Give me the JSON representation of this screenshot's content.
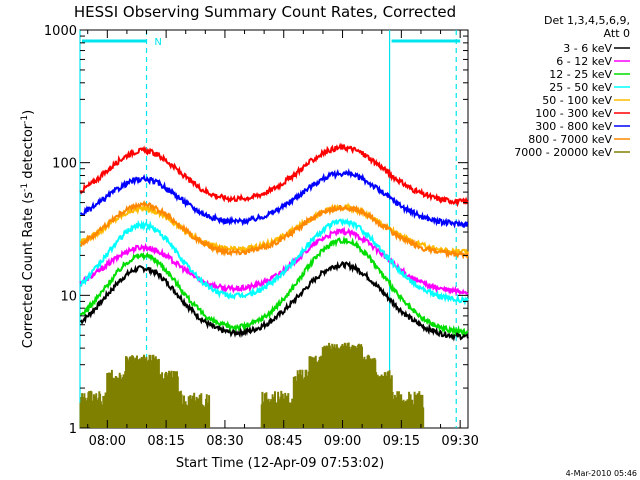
{
  "chart_data": {
    "type": "line",
    "title": "HESSI Observing Summary Count Rates, Corrected",
    "xlabel": "Start Time (12-Apr-09 07:53:02)",
    "ylabel": "Corrected Count Rate (s",
    "ylabel_sup1": "-1",
    "ylabel_mid": " detector",
    "ylabel_sup2": "-1",
    "ylabel_end": ")",
    "footer": "4-Mar-2010 05:46",
    "y_scale": "log",
    "ylim": [
      1,
      1000
    ],
    "y_ticks": [
      {
        "value": 1,
        "label": "1"
      },
      {
        "value": 10,
        "label": "10"
      },
      {
        "value": 100,
        "label": "100"
      },
      {
        "value": 1000,
        "label": "1000"
      }
    ],
    "xlim": [
      "07:53:02",
      "09:32:00"
    ],
    "x_ticks": [
      {
        "time": "08:00",
        "label": "08:00"
      },
      {
        "time": "08:15",
        "label": "08:15"
      },
      {
        "time": "08:30",
        "label": "08:30"
      },
      {
        "time": "08:45",
        "label": "08:45"
      },
      {
        "time": "09:00",
        "label": "09:00"
      },
      {
        "time": "09:15",
        "label": "09:15"
      },
      {
        "time": "09:30",
        "label": "09:30"
      }
    ],
    "legend": {
      "position": "right",
      "header1": "Det 1,3,4,5,6,9,",
      "header2": "Att 0"
    },
    "markers": {
      "night_bars": [
        {
          "start": "07:53:02",
          "end": "08:10:00"
        },
        {
          "start": "09:12:00",
          "end": "09:30:00"
        }
      ],
      "solid_lines": [
        "07:53:02",
        "09:12:00"
      ],
      "dashed_lines": [
        "08:10:00",
        "09:29:00"
      ],
      "label": "N",
      "label_time": "08:12:00"
    },
    "profile": {
      "base_period_start": "08:20",
      "base_period_end": "08:48",
      "peak1": "08:09",
      "peak2": "09:00"
    },
    "series": [
      {
        "name": "3 - 6 keV",
        "color": "#000000",
        "base": 4.8,
        "peak1": 16,
        "peak2": 17
      },
      {
        "name": "6 - 12 keV",
        "color": "#ff00ff",
        "base": 10.5,
        "peak1": 23,
        "peak2": 30
      },
      {
        "name": "12 - 25 keV",
        "color": "#00dd00",
        "base": 5.2,
        "peak1": 20,
        "peak2": 26
      },
      {
        "name": "25 - 50 keV",
        "color": "#00ffff",
        "base": 9.0,
        "peak1": 34,
        "peak2": 36
      },
      {
        "name": "50 - 100 keV",
        "color": "#ffbb00",
        "base": 21,
        "peak1": 45,
        "peak2": 46
      },
      {
        "name": "100 - 300 keV",
        "color": "#ff0000",
        "base": 50,
        "peak1": 123,
        "peak2": 130
      },
      {
        "name": "300 - 800 keV",
        "color": "#0000ff",
        "base": 34,
        "peak1": 75,
        "peak2": 83
      },
      {
        "name": "800 - 7000 keV",
        "color": "#ff8800",
        "base": 20,
        "peak1": 48,
        "peak2": 46
      },
      {
        "name": "7000 - 20000 keV",
        "color": "#808000",
        "base": 1,
        "peak1": 3.3,
        "peak2": 4.4
      }
    ]
  }
}
